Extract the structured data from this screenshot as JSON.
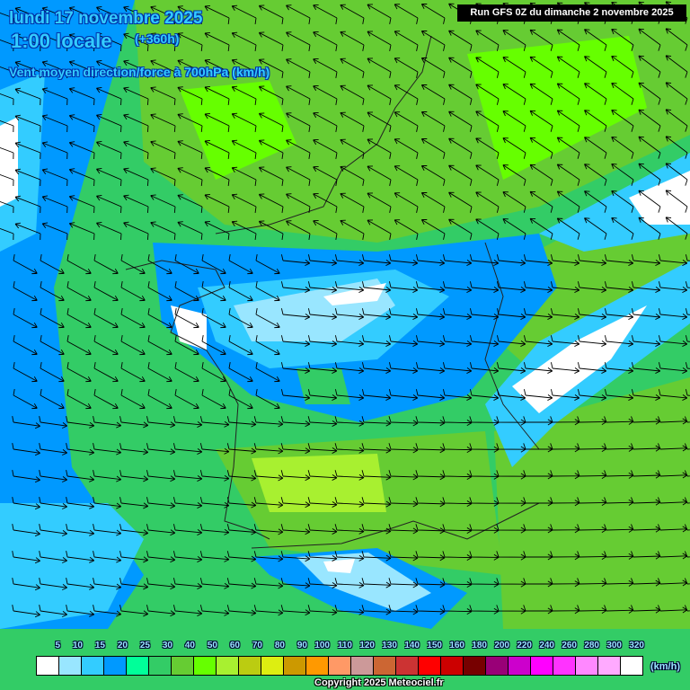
{
  "header": {
    "date": "lundi 17 novembre 2025",
    "time": "1:00 locale",
    "lead": "(+360h)",
    "parameter": "Vent moyen direction/force à 700hPa (km/h)",
    "run": "Run GFS 0Z du dimanche 2 novembre 2025"
  },
  "legend": {
    "unit": "(km/h)",
    "labels": [
      "5",
      "10",
      "15",
      "20",
      "25",
      "30",
      "40",
      "50",
      "60",
      "70",
      "80",
      "90",
      "100",
      "110",
      "120",
      "130",
      "140",
      "150",
      "160",
      "180",
      "200",
      "220",
      "240",
      "260",
      "280",
      "300",
      "320"
    ],
    "colors": [
      "#ffffff",
      "#99e6ff",
      "#33ccff",
      "#0099ff",
      "#00ff99",
      "#33cc66",
      "#66cc33",
      "#66ff00",
      "#a8f030",
      "#bbcc11",
      "#ddee11",
      "#cc9900",
      "#ff9900",
      "#ff9966",
      "#cc9999",
      "#cc6633",
      "#cc3333",
      "#ff0000",
      "#cc0000",
      "#770000",
      "#990077",
      "#cc00cc",
      "#ff00ff",
      "#ff33ff",
      "#ff88ff",
      "#ffaaff",
      "#ffffff"
    ]
  },
  "footer": {
    "copyright": "Copyright 2025 Meteociel.fr"
  }
}
